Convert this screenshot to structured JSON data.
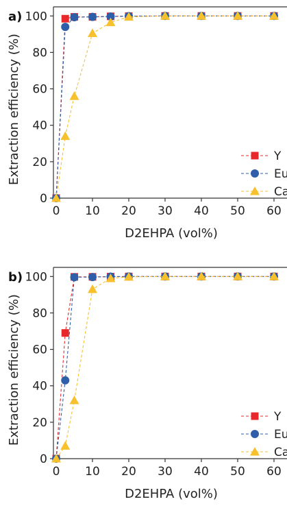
{
  "chart_data": [
    {
      "type": "line",
      "panel_label": "a)",
      "xlabel": "D2EHPA (vol%)",
      "ylabel": "Extraction efficiency (%)",
      "xlim": [
        -1,
        62
      ],
      "ylim": [
        0,
        105
      ],
      "xticks": [
        0,
        10,
        20,
        30,
        40,
        50,
        60
      ],
      "yticks": [
        0,
        20,
        40,
        60,
        80,
        100
      ],
      "x": [
        0,
        2.5,
        5,
        10,
        15,
        20,
        30,
        40,
        50,
        60
      ],
      "series": [
        {
          "name": "Y",
          "color": "#e8282a",
          "marker": "square",
          "values": [
            0,
            98.5,
            99.5,
            99.5,
            99.8,
            99.9,
            100,
            100,
            100,
            100
          ]
        },
        {
          "name": "Eu",
          "color": "#2f5fa8",
          "marker": "circle",
          "values": [
            0,
            94,
            99.3,
            99.5,
            99.7,
            99.9,
            100,
            100,
            100,
            100
          ]
        },
        {
          "name": "Ca",
          "color": "#f6c12c",
          "marker": "triangle",
          "values": [
            0,
            34,
            56,
            90.5,
            96.5,
            99.5,
            100,
            100,
            100,
            100
          ]
        }
      ],
      "legend_position": "lower-right",
      "grid": false
    },
    {
      "type": "line",
      "panel_label": "b)",
      "xlabel": "D2EHPA (vol%)",
      "ylabel": "Extraction efficiency (%)",
      "xlim": [
        -1,
        62
      ],
      "ylim": [
        0,
        105
      ],
      "xticks": [
        0,
        10,
        20,
        30,
        40,
        50,
        60
      ],
      "yticks": [
        0,
        20,
        40,
        60,
        80,
        100
      ],
      "x": [
        0,
        2.5,
        5,
        10,
        15,
        20,
        30,
        40,
        50,
        60
      ],
      "series": [
        {
          "name": "Y",
          "color": "#e8282a",
          "marker": "square",
          "values": [
            0,
            69,
            99.8,
            99.8,
            99.9,
            100,
            100,
            100,
            100,
            100
          ]
        },
        {
          "name": "Eu",
          "color": "#2f5fa8",
          "marker": "circle",
          "values": [
            0,
            43,
            99.6,
            99.7,
            99.9,
            100,
            100,
            100,
            100,
            100
          ]
        },
        {
          "name": "Ca",
          "color": "#f6c12c",
          "marker": "triangle",
          "values": [
            0,
            7,
            32,
            93,
            99,
            99.8,
            100,
            100,
            100,
            100
          ]
        }
      ],
      "legend_position": "lower-right",
      "grid": false
    }
  ]
}
